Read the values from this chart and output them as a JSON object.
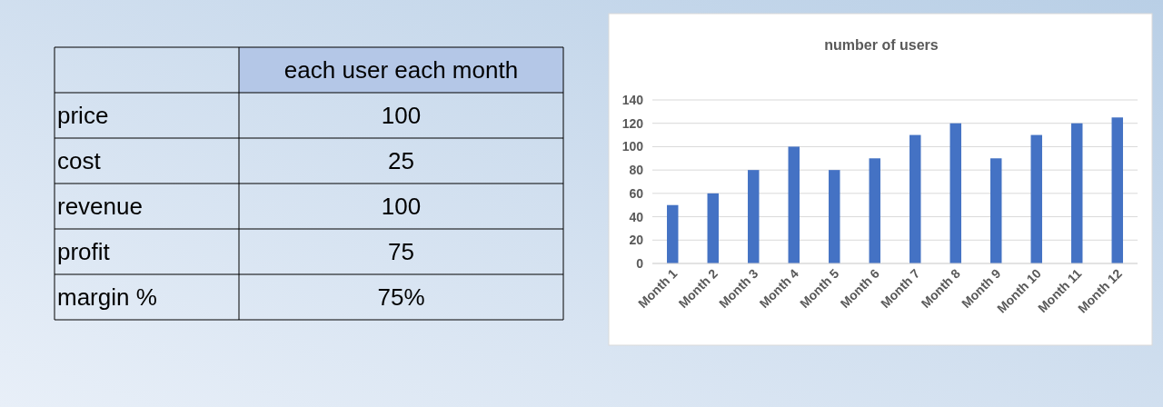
{
  "chart_data": [
    {
      "type": "other",
      "title": "each user each month",
      "categories": [
        "price",
        "cost",
        "revenue",
        "profit",
        "margin %"
      ],
      "value_labels": [
        "100",
        "25",
        "100",
        "75",
        "75%"
      ],
      "color": "#b4c7e7"
    },
    {
      "type": "bar",
      "title": "number of users",
      "categories": [
        "Month 1",
        "Month 2",
        "Month 3",
        "Month 4",
        "Month 5",
        "Month 6",
        "Month 7",
        "Month 8",
        "Month 9",
        "Month 10",
        "Month 11",
        "Month 12"
      ],
      "values": [
        50,
        60,
        80,
        100,
        80,
        90,
        110,
        120,
        90,
        110,
        120,
        125
      ],
      "color": "#4472c4",
      "ylim": [
        0,
        140
      ],
      "yticks": [
        0,
        20,
        40,
        60,
        80,
        100,
        120,
        140
      ],
      "grid": "y"
    }
  ]
}
